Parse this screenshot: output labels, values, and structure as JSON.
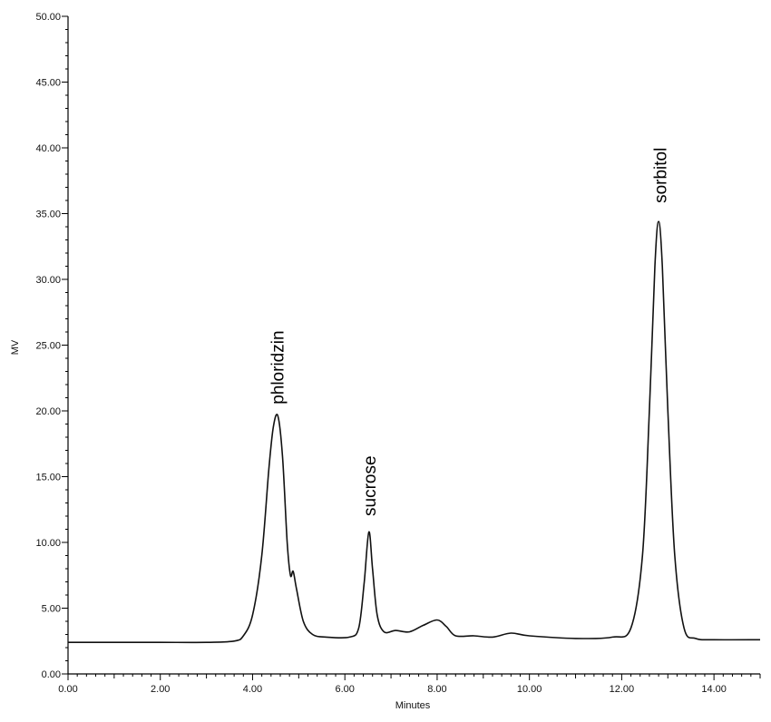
{
  "chart_data": {
    "type": "line",
    "xlabel": "Minutes",
    "ylabel": "MV",
    "xlim": [
      0,
      15
    ],
    "ylim": [
      0,
      50
    ],
    "x_ticks": [
      0,
      2,
      4,
      6,
      8,
      10,
      12,
      14
    ],
    "x_tick_labels": [
      "0.00",
      "2.00",
      "4.00",
      "6.00",
      "8.00",
      "10.00",
      "12.00",
      "14.00"
    ],
    "y_ticks": [
      0,
      5,
      10,
      15,
      20,
      25,
      30,
      35,
      40,
      45,
      50
    ],
    "y_tick_labels": [
      "0.00",
      "5.00",
      "10.00",
      "15.00",
      "20.00",
      "25.00",
      "30.00",
      "35.00",
      "40.00",
      "45.00",
      "50.00"
    ],
    "grid": false,
    "series": [
      {
        "values_xy": [
          [
            0.0,
            2.4
          ],
          [
            1.0,
            2.4
          ],
          [
            2.0,
            2.4
          ],
          [
            3.0,
            2.4
          ],
          [
            3.6,
            2.5
          ],
          [
            3.8,
            2.9
          ],
          [
            4.0,
            4.5
          ],
          [
            4.2,
            9.0
          ],
          [
            4.35,
            15.5
          ],
          [
            4.45,
            18.8
          ],
          [
            4.55,
            19.6
          ],
          [
            4.65,
            16.5
          ],
          [
            4.75,
            10.0
          ],
          [
            4.82,
            7.5
          ],
          [
            4.88,
            7.8
          ],
          [
            4.95,
            6.5
          ],
          [
            5.1,
            4.0
          ],
          [
            5.3,
            3.0
          ],
          [
            5.6,
            2.8
          ],
          [
            6.1,
            2.8
          ],
          [
            6.3,
            3.5
          ],
          [
            6.42,
            7.0
          ],
          [
            6.52,
            10.8
          ],
          [
            6.6,
            8.0
          ],
          [
            6.7,
            4.5
          ],
          [
            6.85,
            3.2
          ],
          [
            7.1,
            3.3
          ],
          [
            7.4,
            3.2
          ],
          [
            7.7,
            3.7
          ],
          [
            8.0,
            4.1
          ],
          [
            8.2,
            3.6
          ],
          [
            8.4,
            2.9
          ],
          [
            8.8,
            2.9
          ],
          [
            9.2,
            2.8
          ],
          [
            9.6,
            3.1
          ],
          [
            10.0,
            2.9
          ],
          [
            11.0,
            2.7
          ],
          [
            11.8,
            2.8
          ],
          [
            12.2,
            3.5
          ],
          [
            12.45,
            9.0
          ],
          [
            12.6,
            20.0
          ],
          [
            12.72,
            31.0
          ],
          [
            12.8,
            34.4
          ],
          [
            12.88,
            31.0
          ],
          [
            13.0,
            20.0
          ],
          [
            13.15,
            9.0
          ],
          [
            13.35,
            3.5
          ],
          [
            13.6,
            2.7
          ],
          [
            14.0,
            2.6
          ],
          [
            15.0,
            2.6
          ]
        ]
      }
    ],
    "annotations": [
      {
        "text": "phloridzin",
        "x": 4.55,
        "y": 20.5
      },
      {
        "text": "sucrose",
        "x": 6.55,
        "y": 12.0
      },
      {
        "text": "sorbitol",
        "x": 12.85,
        "y": 35.8
      }
    ]
  }
}
